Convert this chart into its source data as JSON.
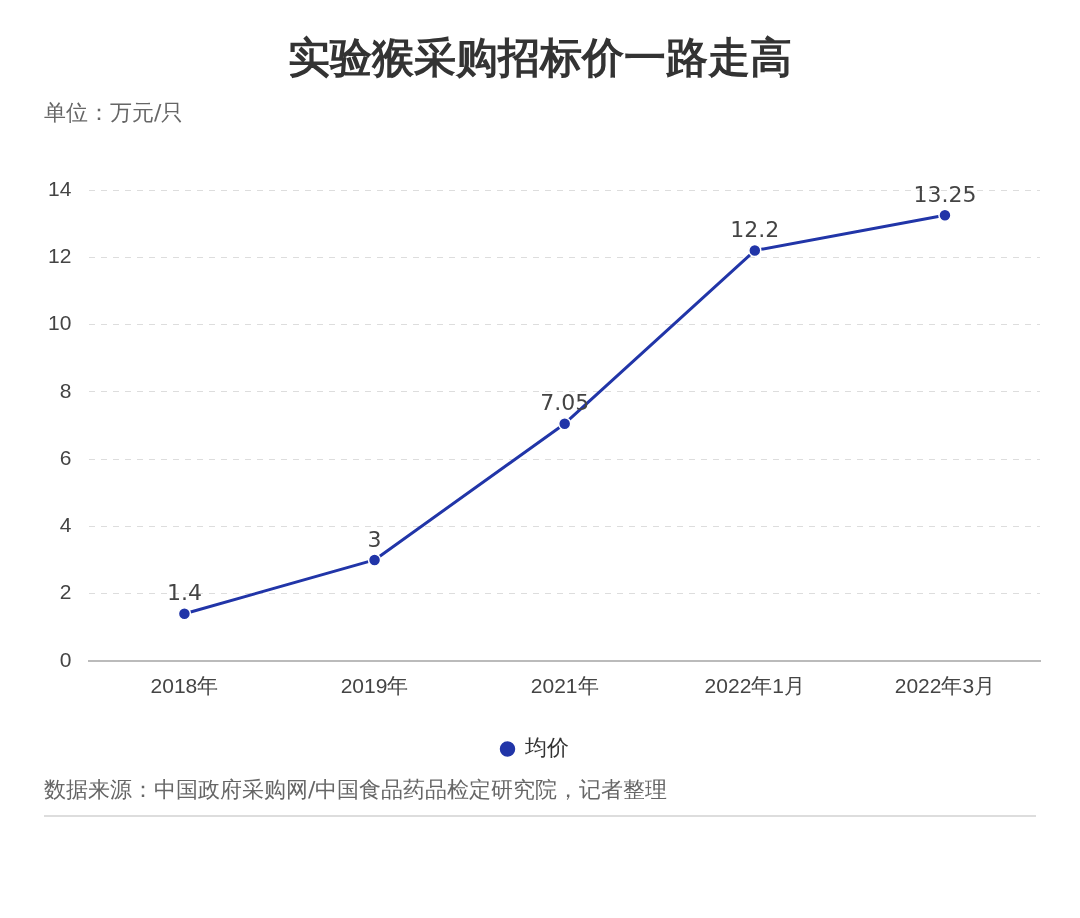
{
  "chart_data": {
    "type": "line",
    "title": "实验猴采购招标价一路走高",
    "ylabel": "单位：万元/只",
    "categories": [
      "2018年",
      "2019年",
      "2021年",
      "2022年1月",
      "2022年3月"
    ],
    "series": [
      {
        "name": "均价",
        "color": "#2135a8",
        "values": [
          1.4,
          3,
          7.05,
          12.2,
          13.25
        ]
      }
    ],
    "ylim": [
      0,
      14
    ],
    "yticks": [
      0,
      2,
      4,
      6,
      8,
      10,
      12,
      14
    ],
    "grid": "y",
    "legend": "bottom",
    "marker": "circle",
    "line_style": "solid",
    "data_labels": true,
    "annotations": [
      "数据来源：中国政府采购网/中国食品药品检定研究院，记者整理"
    ]
  }
}
